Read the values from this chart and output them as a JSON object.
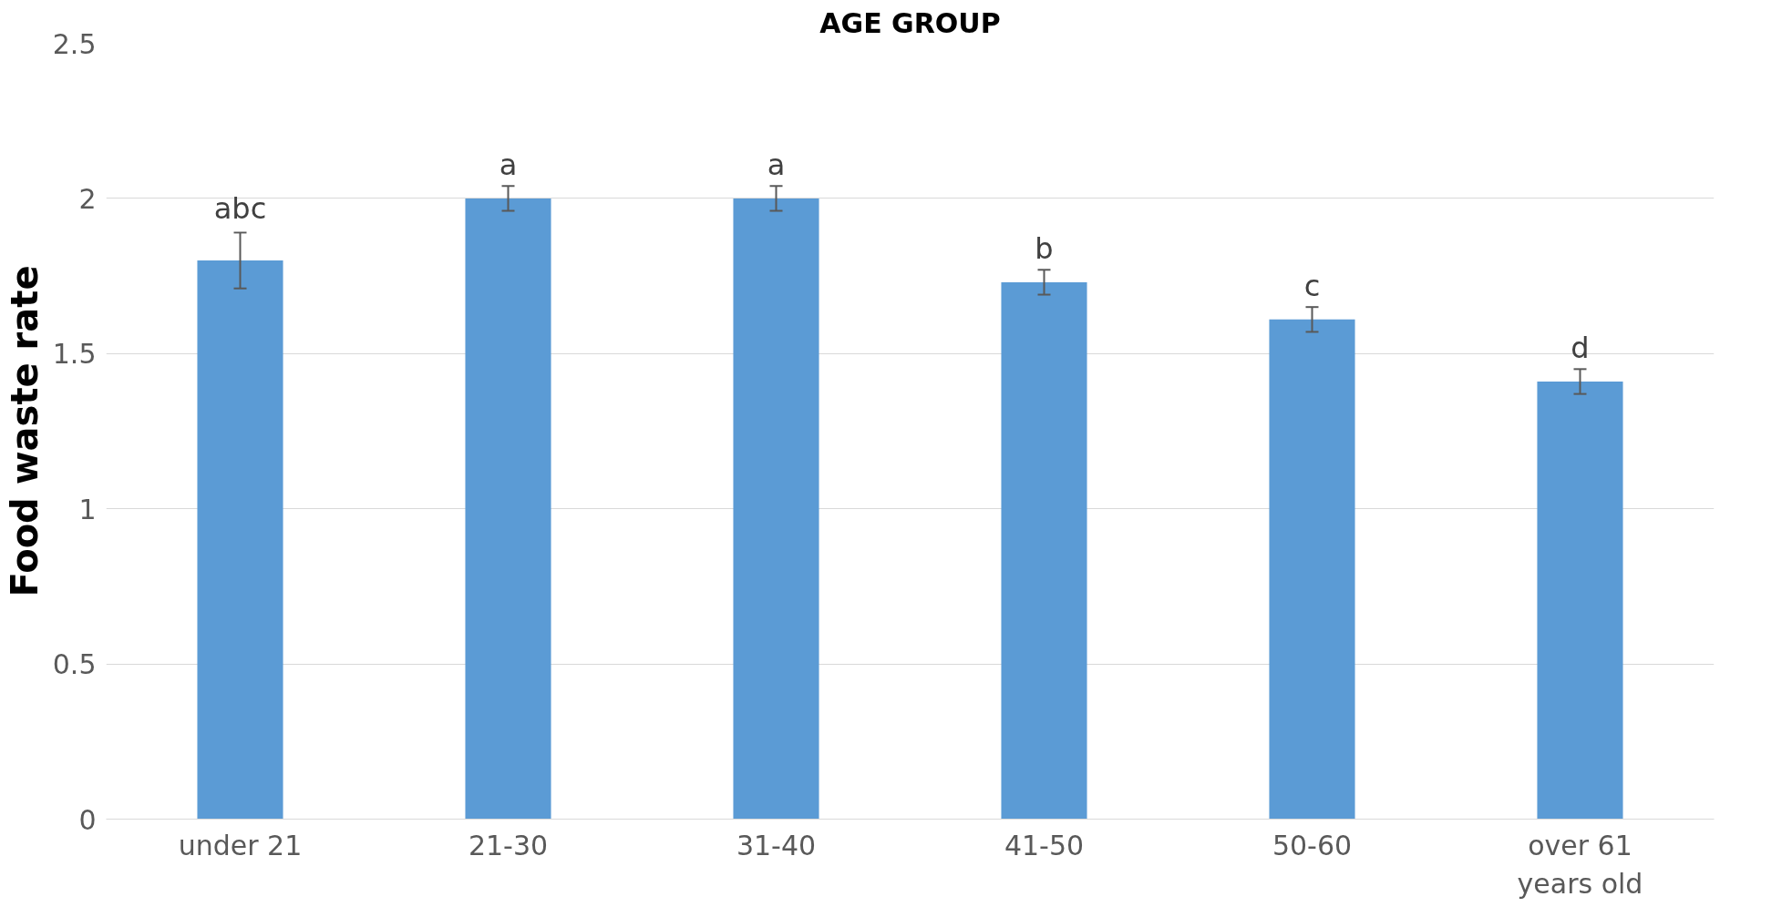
{
  "chart_data": {
    "type": "bar",
    "title": "AGE GROUP",
    "ylabel": "Food waste rate",
    "categories": [
      "under 21",
      "21-30",
      "31-40",
      "41-50",
      "50-60",
      "over 61 years old"
    ],
    "series": [
      {
        "color": "#5b9bd5",
        "values": [
          1.8,
          2.0,
          2.0,
          1.73,
          1.61,
          1.41
        ],
        "errors": [
          0.09,
          0.04,
          0.04,
          0.04,
          0.04,
          0.04
        ]
      }
    ],
    "ylim": [
      0,
      2.5
    ],
    "yticks": [
      {
        "value": 0,
        "label": "0"
      },
      {
        "value": 0.5,
        "label": "0.5"
      },
      {
        "value": 1,
        "label": "1"
      },
      {
        "value": 1.5,
        "label": "1.5"
      },
      {
        "value": 2,
        "label": "2"
      },
      {
        "value": 2.5,
        "label": "2.5"
      }
    ],
    "grid": "y",
    "annotations": [
      {
        "text": "abc",
        "x": "under 21",
        "y": 1.9
      },
      {
        "text": "a",
        "x": "21-30",
        "y": 2.04
      },
      {
        "text": "a",
        "x": "31-40",
        "y": 2.04
      },
      {
        "text": "b",
        "x": "41-50",
        "y": 1.77
      },
      {
        "text": "c",
        "x": "50-60",
        "y": 1.65
      },
      {
        "text": "d",
        "x": "over 61 years old",
        "y": 1.45
      }
    ]
  }
}
